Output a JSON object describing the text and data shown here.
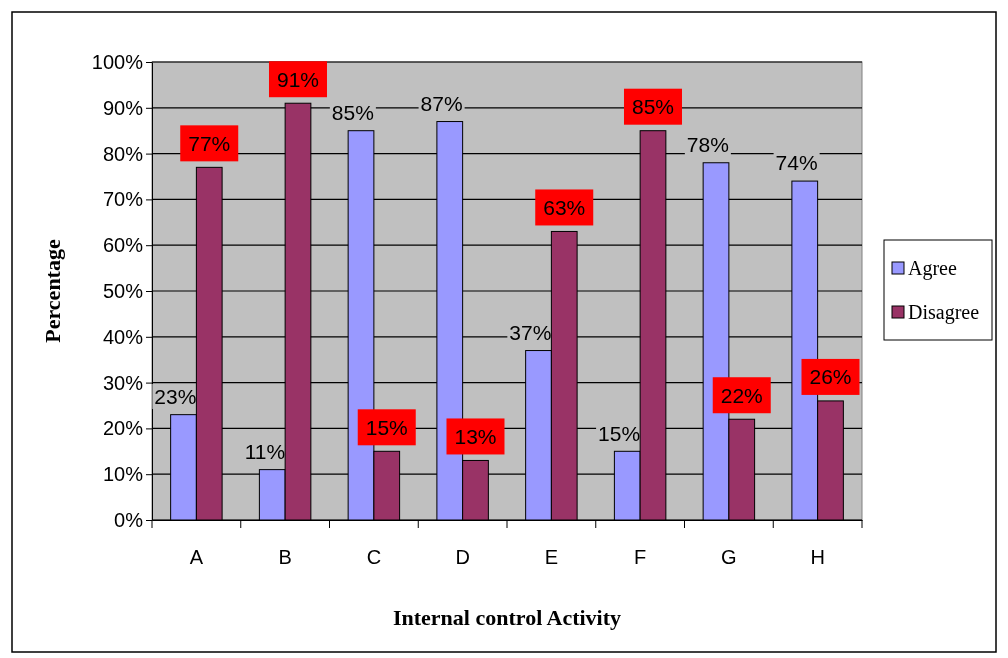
{
  "chart_data": {
    "type": "bar",
    "xlabel": "Internal control Activity",
    "ylabel": "Percentage",
    "categories": [
      "A",
      "B",
      "C",
      "D",
      "E",
      "F",
      "G",
      "H"
    ],
    "series": [
      {
        "name": "Agree",
        "color": "#9999ff",
        "values": [
          23,
          11,
          85,
          87,
          37,
          15,
          78,
          74
        ],
        "value_labels": [
          "23%",
          "11%",
          "85%",
          "87%",
          "37%",
          "15%",
          "78%",
          "74%"
        ]
      },
      {
        "name": "Disagree",
        "color": "#993366",
        "values": [
          77,
          91,
          15,
          13,
          63,
          85,
          22,
          26
        ],
        "value_labels": [
          "77%",
          "91%",
          "15%",
          "13%",
          "63%",
          "85%",
          "22%",
          "26%"
        ]
      }
    ],
    "ylim": [
      0,
      100
    ],
    "yticks": [
      {
        "value": 0,
        "label": "0%"
      },
      {
        "value": 10,
        "label": "10%"
      },
      {
        "value": 20,
        "label": "20%"
      },
      {
        "value": 30,
        "label": "30%"
      },
      {
        "value": 40,
        "label": "40%"
      },
      {
        "value": 50,
        "label": "50%"
      },
      {
        "value": 60,
        "label": "60%"
      },
      {
        "value": 70,
        "label": "70%"
      },
      {
        "value": 80,
        "label": "80%"
      },
      {
        "value": 90,
        "label": "90%"
      },
      {
        "value": 100,
        "label": "100%"
      }
    ],
    "grid": "y",
    "legend": "right"
  }
}
